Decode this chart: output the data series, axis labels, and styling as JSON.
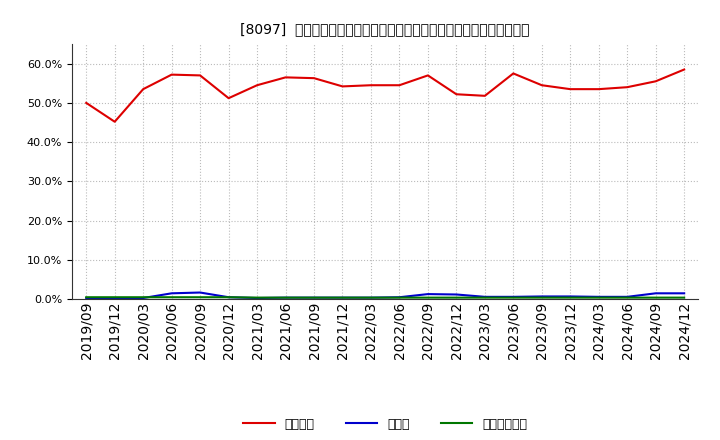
{
  "title": "[8097]  自己資本、のれん、繰延税金資産の総資産に対する比率の推移",
  "x_labels": [
    "2019/09",
    "2019/12",
    "2020/03",
    "2020/06",
    "2020/09",
    "2020/12",
    "2021/03",
    "2021/06",
    "2021/09",
    "2021/12",
    "2022/03",
    "2022/06",
    "2022/09",
    "2022/12",
    "2023/03",
    "2023/06",
    "2023/09",
    "2023/12",
    "2024/03",
    "2024/06",
    "2024/09",
    "2024/12"
  ],
  "equity": [
    50.0,
    45.2,
    53.5,
    57.2,
    57.0,
    51.2,
    54.5,
    56.5,
    56.3,
    54.2,
    54.5,
    54.5,
    57.0,
    52.2,
    51.8,
    57.5,
    54.5,
    53.5,
    53.5,
    54.0,
    55.5,
    58.5
  ],
  "noren": [
    0.3,
    0.2,
    0.3,
    1.5,
    1.7,
    0.5,
    0.3,
    0.4,
    0.4,
    0.4,
    0.4,
    0.5,
    1.3,
    1.2,
    0.6,
    0.6,
    0.7,
    0.7,
    0.6,
    0.6,
    1.5,
    1.5
  ],
  "deferred_tax": [
    0.5,
    0.5,
    0.5,
    0.5,
    0.5,
    0.5,
    0.4,
    0.4,
    0.4,
    0.4,
    0.4,
    0.4,
    0.4,
    0.4,
    0.4,
    0.4,
    0.4,
    0.4,
    0.4,
    0.4,
    0.4,
    0.4
  ],
  "equity_color": "#dd0000",
  "noren_color": "#0000cc",
  "deferred_color": "#007700",
  "background_color": "#ffffff",
  "plot_bg_color": "#ffffff",
  "grid_color": "#bbbbbb",
  "ylim": [
    0,
    65
  ],
  "yticks": [
    0,
    10,
    20,
    30,
    40,
    50,
    60
  ],
  "legend_labels": [
    "自己資本",
    "のれん",
    "繰延税金資産"
  ]
}
